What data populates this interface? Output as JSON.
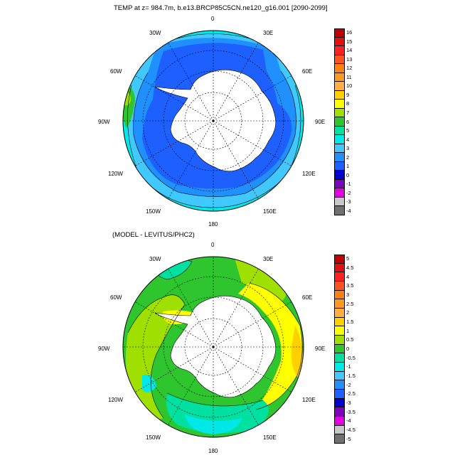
{
  "titles": {
    "top": "TEMP at z= 984.7m, b.e13.BRCP85C5CN.ne120_g16.001 [2090-2099]",
    "bottom": "(MODEL - LEVITUS/PHC2)"
  },
  "longitude_labels": [
    "0",
    "30E",
    "60E",
    "90E",
    "120E",
    "150E",
    "180",
    "150W",
    "120W",
    "90W",
    "60W",
    "30W"
  ],
  "colorbars": {
    "top": {
      "labels": [
        "16",
        "15",
        "14",
        "13",
        "12",
        "11",
        "10",
        "9",
        "8",
        "7",
        "6",
        "5",
        "4",
        "3",
        "2",
        "1",
        "0",
        "-1",
        "-2",
        "-3",
        "-4"
      ],
      "colors": [
        "#c00000",
        "#e01010",
        "#ff2020",
        "#ff5020",
        "#ff7f10",
        "#ff9a20",
        "#ffb040",
        "#ffd000",
        "#ffff00",
        "#a0e000",
        "#2ec52e",
        "#00e0a0",
        "#00e8e8",
        "#40c8ff",
        "#2090ff",
        "#1e60ff",
        "#0000d0",
        "#8000c0",
        "#e000e0",
        "#c8c8c8",
        "#707070"
      ]
    },
    "bottom": {
      "labels": [
        "5",
        "4.5",
        "4",
        "3.5",
        "3",
        "2.5",
        "2",
        "1.5",
        "1",
        "0.5",
        "0",
        "-0.5",
        "-1",
        "-1.5",
        "-2",
        "-2.5",
        "-3",
        "-3.5",
        "-4",
        "-4.5",
        "-5"
      ],
      "colors": [
        "#c00000",
        "#e01010",
        "#ff2020",
        "#ff5020",
        "#ff7f10",
        "#ff9a20",
        "#ffb040",
        "#ffd000",
        "#ffff00",
        "#a0e000",
        "#2ec52e",
        "#00e0a0",
        "#00e8e8",
        "#40c8ff",
        "#2090ff",
        "#1e60ff",
        "#0000d0",
        "#8000c0",
        "#e000e0",
        "#c8c8c8",
        "#707070"
      ]
    }
  }
}
